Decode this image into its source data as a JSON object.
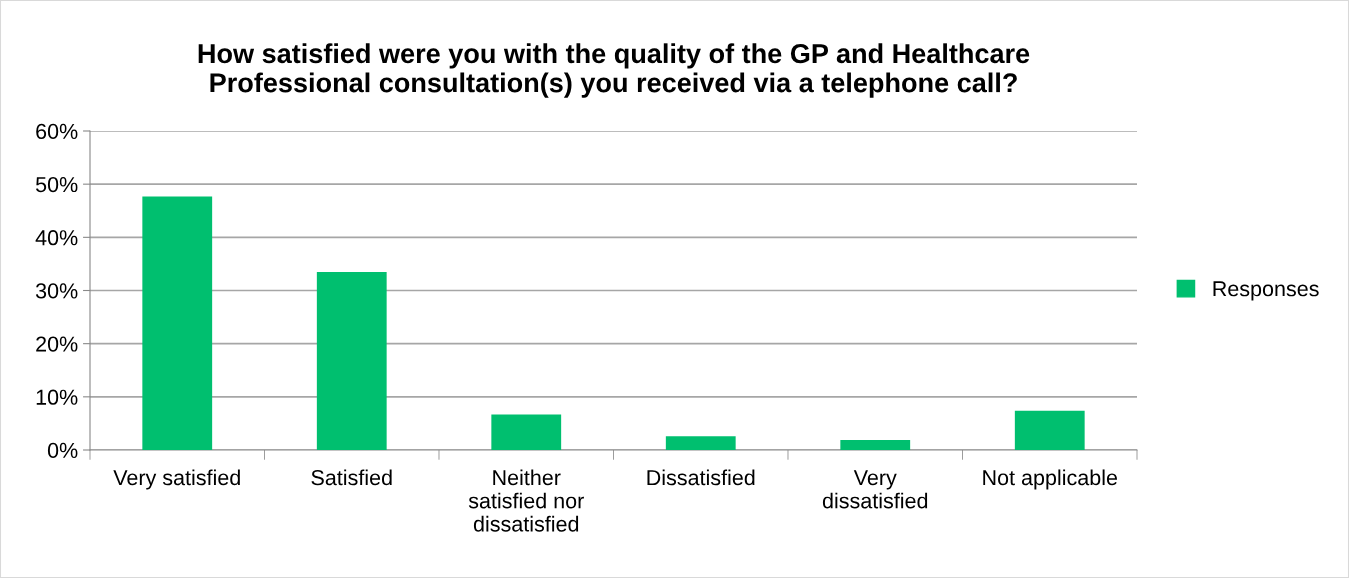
{
  "chart_data": {
    "type": "bar",
    "title": "How satisfied were you with the quality of the GP and Healthcare\nProfessional consultation(s) you received via a telephone call?",
    "categories": [
      "Very satisfied",
      "Satisfied",
      "Neither\nsatisfied nor\ndissatisfied",
      "Dissatisfied",
      "Very\ndissatisfied",
      "Not applicable"
    ],
    "series": [
      {
        "name": "Responses",
        "color": "#00bf6f",
        "values": [
          47.7,
          33.5,
          6.7,
          2.6,
          1.9,
          7.4
        ]
      }
    ],
    "ylim": [
      0,
      60
    ],
    "yticks": [
      {
        "value": 0,
        "label": "0%"
      },
      {
        "value": 10,
        "label": "10%"
      },
      {
        "value": 20,
        "label": "20%"
      },
      {
        "value": 30,
        "label": "30%"
      },
      {
        "value": 40,
        "label": "40%"
      },
      {
        "value": 50,
        "label": "50%"
      },
      {
        "value": 60,
        "label": "60%"
      }
    ],
    "grid": "y",
    "legend": "right"
  }
}
